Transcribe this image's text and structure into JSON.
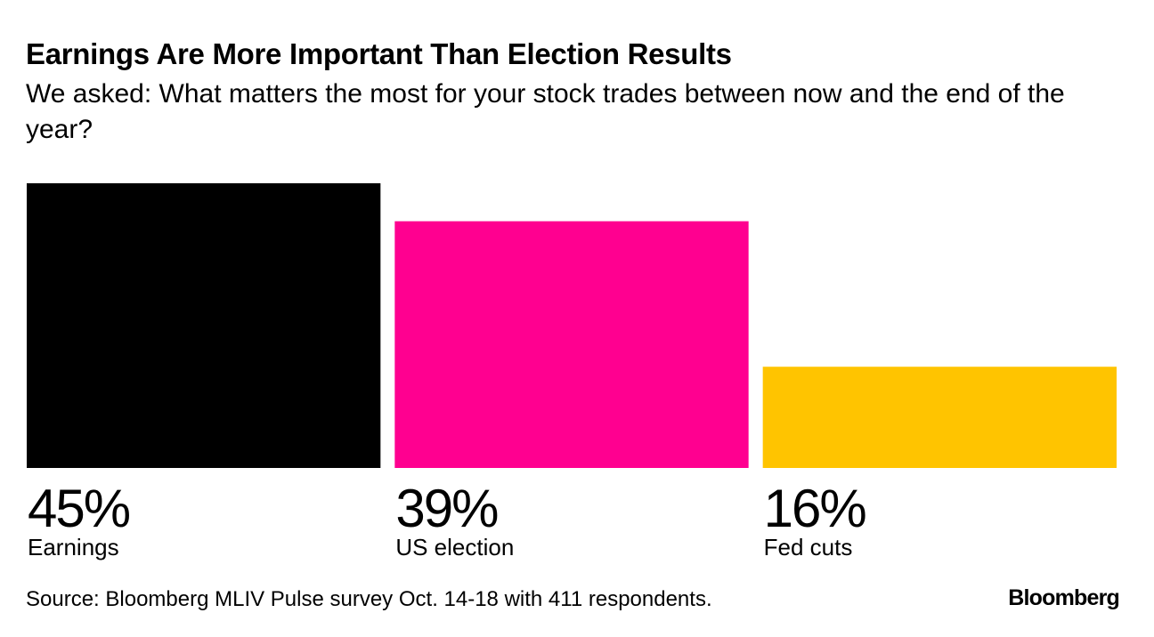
{
  "header": {
    "title": "Earnings Are More Important Than Election Results",
    "subtitle": "We asked: What matters the most for your stock trades between now and the end of the year?"
  },
  "chart_data": {
    "type": "bar",
    "title": "Earnings Are More Important Than Election Results",
    "subtitle": "We asked: What matters the most for your stock trades between now and the end of the year?",
    "categories": [
      "Earnings",
      "US election",
      "Fed cuts"
    ],
    "values": [
      45,
      39,
      16
    ],
    "value_labels": [
      "45%",
      "39%",
      "16%"
    ],
    "colors": [
      "#000000",
      "#ff0090",
      "#ffc400"
    ],
    "unit": "%",
    "ylim": [
      0,
      45
    ],
    "xlabel": "",
    "ylabel": "",
    "grid": false,
    "legend": "none"
  },
  "footer": {
    "source": "Source: Bloomberg MLIV Pulse survey Oct. 14-18 with 411 respondents.",
    "logo": "Bloomberg"
  }
}
